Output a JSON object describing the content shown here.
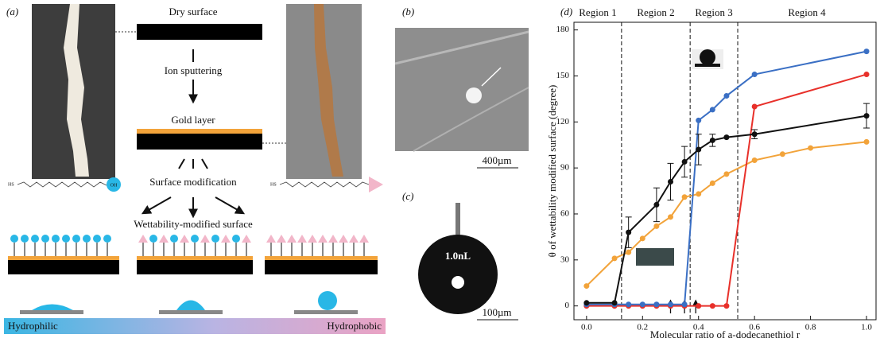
{
  "panel_a": {
    "label": "(a)",
    "dry": "Dry surface",
    "sputter": "Ion sputtering",
    "gold": "Gold layer",
    "modification": "Surface modification",
    "wettability": "Wettability-modified surface",
    "thiol_end": "HS",
    "hydroxyl": "OH",
    "hydrophilic": "Hydrophilic",
    "hydrophobic": "Hydrophobic"
  },
  "panel_b": {
    "label": "(b)",
    "scale": "400µm"
  },
  "panel_c": {
    "label": "(c)",
    "volume": "1.0nL",
    "scale": "100µm"
  },
  "chart_data": {
    "type": "line",
    "label": "(d)",
    "x_label": "Molecular ratio of a-dodecanethiol r",
    "y_label": "θ of wettability modified surface (degree)",
    "xlim": [
      -0.045,
      1.034
    ],
    "ylim": [
      -9,
      185
    ],
    "xticks": [
      {
        "value": 0,
        "label": "0.0"
      },
      0.2,
      0.4,
      0.6,
      0.8,
      {
        "value": 1,
        "label": "1.0"
      }
    ],
    "yticks": [
      0,
      30,
      60,
      90,
      120,
      150,
      180
    ],
    "regions": [
      "Region 1",
      "Region 2",
      "Region 3",
      "Region 4"
    ],
    "boundaries": [
      0.125,
      0.37,
      0.54
    ],
    "arrows_x": [
      0.3,
      0.35,
      0.39
    ],
    "series": [
      {
        "color": "#f2a33a",
        "x": [
          0,
          0.1,
          0.15,
          0.2,
          0.25,
          0.3,
          0.35,
          0.4,
          0.45,
          0.5,
          0.6,
          0.7,
          0.8,
          1.0
        ],
        "values": [
          13,
          31,
          35,
          44,
          52,
          58,
          71,
          73,
          80,
          86,
          95,
          99,
          103,
          107
        ]
      },
      {
        "color": "#e8302a",
        "x": [
          0,
          0.1,
          0.15,
          0.2,
          0.25,
          0.3,
          0.35,
          0.4,
          0.45,
          0.5,
          0.6,
          1.0
        ],
        "values": [
          0,
          0,
          0,
          0,
          0,
          0,
          0,
          0,
          0,
          0,
          130,
          151
        ]
      },
      {
        "color": "#3a6fc4",
        "x": [
          0,
          0.1,
          0.15,
          0.2,
          0.25,
          0.3,
          0.35,
          0.4,
          0.45,
          0.5,
          0.6,
          1.0
        ],
        "values": [
          1,
          1,
          1,
          1,
          1,
          1,
          1,
          121,
          128,
          137,
          151,
          166
        ]
      },
      {
        "color": "#111111",
        "x": [
          0,
          0.1,
          0.15,
          0.25,
          0.3,
          0.35,
          0.4,
          0.45,
          0.5,
          0.6,
          1.0
        ],
        "values": [
          2,
          2,
          48,
          66,
          81,
          94,
          102,
          108,
          110,
          112,
          124
        ],
        "errors": [
          0,
          0,
          10,
          11,
          12,
          10,
          10,
          4,
          0,
          3,
          8
        ]
      }
    ]
  }
}
